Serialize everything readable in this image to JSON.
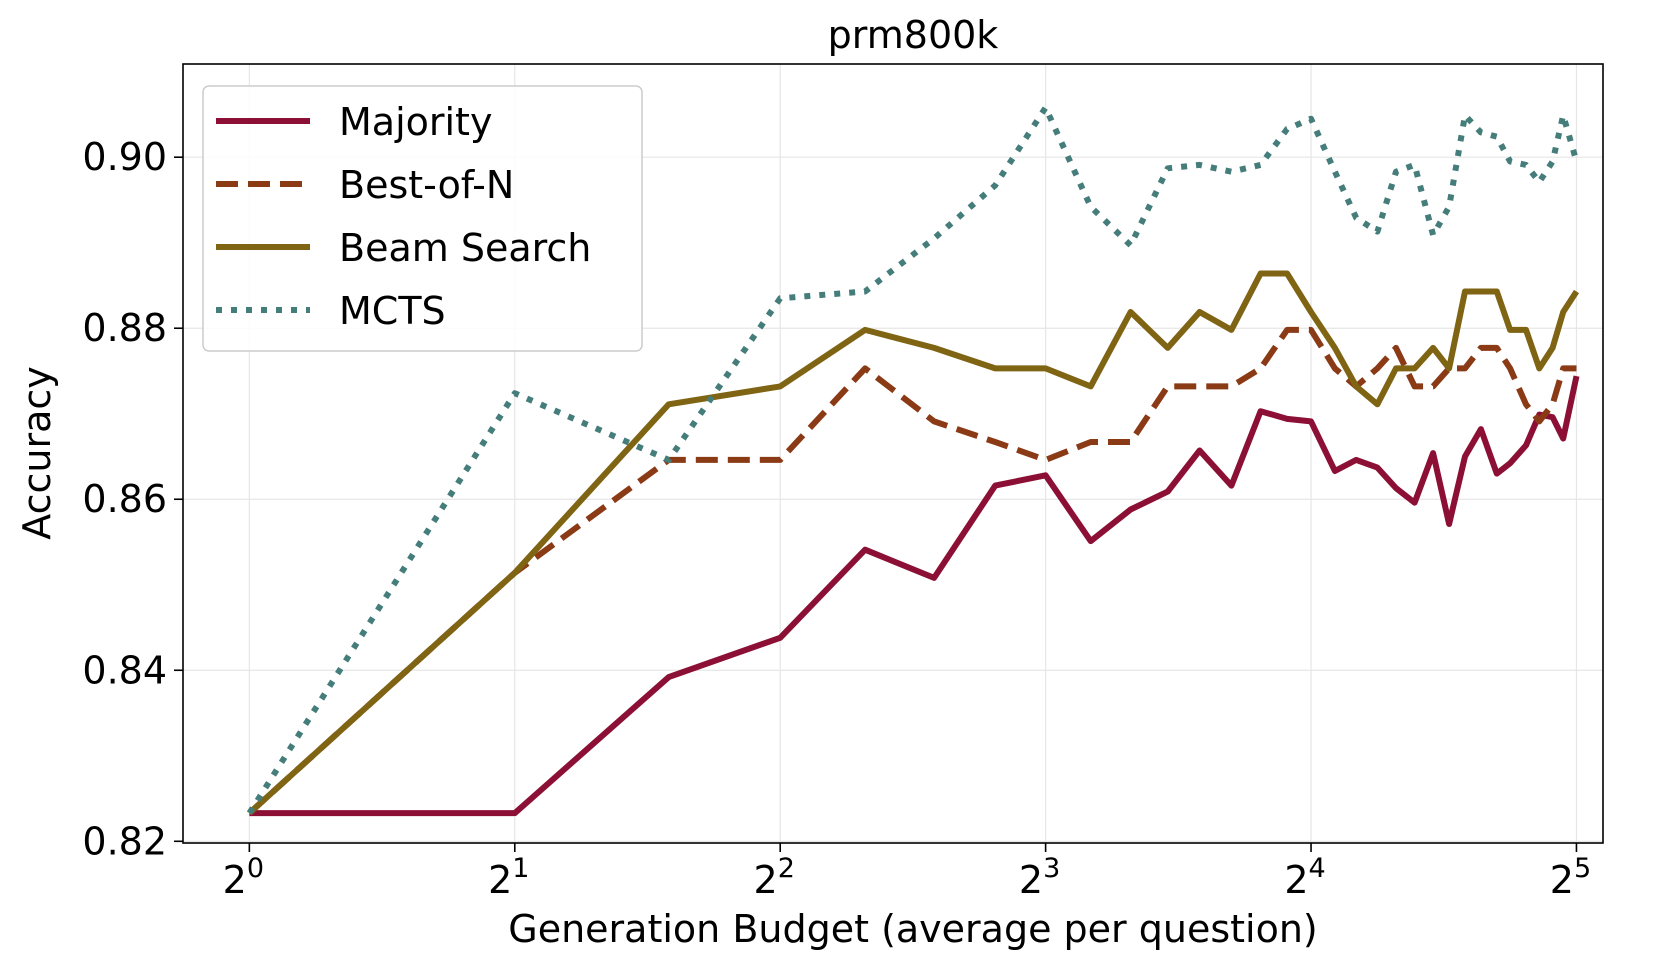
{
  "chart_data": {
    "type": "line",
    "title": "prm800k",
    "xlabel": "Generation Budget (average per question)",
    "ylabel": "Accuracy",
    "x_scale": "log2",
    "xlim_log2": [
      -0.25,
      5.1
    ],
    "ylim": [
      0.8198,
      0.9109
    ],
    "x_ticks": [
      {
        "base": "2",
        "exp": "0",
        "log2": 0
      },
      {
        "base": "2",
        "exp": "1",
        "log2": 1
      },
      {
        "base": "2",
        "exp": "2",
        "log2": 2
      },
      {
        "base": "2",
        "exp": "3",
        "log2": 3
      },
      {
        "base": "2",
        "exp": "4",
        "log2": 4
      },
      {
        "base": "2",
        "exp": "5",
        "log2": 5
      }
    ],
    "y_ticks": [
      {
        "label": "0.82",
        "value": 0.82
      },
      {
        "label": "0.84",
        "value": 0.84
      },
      {
        "label": "0.86",
        "value": 0.86
      },
      {
        "label": "0.88",
        "value": 0.88
      },
      {
        "label": "0.90",
        "value": 0.9
      }
    ],
    "grid": true,
    "legend_position": "top-left",
    "series": [
      {
        "name": "Majority",
        "color": "#8c1035",
        "style": "solid",
        "points": [
          [
            0,
            0.8233
          ],
          [
            1,
            0.8233
          ],
          [
            1.58,
            0.8392
          ],
          [
            2,
            0.8438
          ],
          [
            2.32,
            0.8541
          ],
          [
            2.58,
            0.8508
          ],
          [
            2.81,
            0.8616
          ],
          [
            3,
            0.8628
          ],
          [
            3.17,
            0.8551
          ],
          [
            3.32,
            0.8588
          ],
          [
            3.46,
            0.8609
          ],
          [
            3.58,
            0.8657
          ],
          [
            3.7,
            0.8616
          ],
          [
            3.81,
            0.8703
          ],
          [
            3.91,
            0.8694
          ],
          [
            4,
            0.8691
          ],
          [
            4.09,
            0.8633
          ],
          [
            4.17,
            0.8646
          ],
          [
            4.25,
            0.8637
          ],
          [
            4.32,
            0.8613
          ],
          [
            4.39,
            0.8596
          ],
          [
            4.46,
            0.8654
          ],
          [
            4.52,
            0.8571
          ],
          [
            4.58,
            0.865
          ],
          [
            4.64,
            0.8682
          ],
          [
            4.7,
            0.863
          ],
          [
            4.75,
            0.8642
          ],
          [
            4.81,
            0.8663
          ],
          [
            4.86,
            0.8699
          ],
          [
            4.91,
            0.8696
          ],
          [
            4.95,
            0.8671
          ],
          [
            5,
            0.8744
          ]
        ]
      },
      {
        "name": "Best-of-N",
        "color": "#8b3a16",
        "style": "dashed",
        "points": [
          [
            0,
            0.8233
          ],
          [
            1,
            0.8514
          ],
          [
            1.58,
            0.8646
          ],
          [
            2,
            0.8646
          ],
          [
            2.32,
            0.8753
          ],
          [
            2.58,
            0.8691
          ],
          [
            2.81,
            0.8667
          ],
          [
            3,
            0.8646
          ],
          [
            3.17,
            0.8667
          ],
          [
            3.32,
            0.8667
          ],
          [
            3.46,
            0.8732
          ],
          [
            3.58,
            0.8732
          ],
          [
            3.7,
            0.8732
          ],
          [
            3.81,
            0.8753
          ],
          [
            3.91,
            0.8798
          ],
          [
            4,
            0.8798
          ],
          [
            4.09,
            0.8753
          ],
          [
            4.17,
            0.8732
          ],
          [
            4.25,
            0.8753
          ],
          [
            4.32,
            0.8777
          ],
          [
            4.39,
            0.8732
          ],
          [
            4.46,
            0.8732
          ],
          [
            4.52,
            0.8753
          ],
          [
            4.58,
            0.8753
          ],
          [
            4.64,
            0.8777
          ],
          [
            4.7,
            0.8777
          ],
          [
            4.75,
            0.8753
          ],
          [
            4.81,
            0.8711
          ],
          [
            4.86,
            0.8691
          ],
          [
            4.91,
            0.8711
          ],
          [
            4.95,
            0.8753
          ],
          [
            5,
            0.8753
          ]
        ]
      },
      {
        "name": "Beam Search",
        "color": "#7f6414",
        "style": "solid",
        "points": [
          [
            0,
            0.8233
          ],
          [
            1,
            0.8514
          ],
          [
            1.58,
            0.8711
          ],
          [
            2,
            0.8732
          ],
          [
            2.32,
            0.8798
          ],
          [
            2.58,
            0.8777
          ],
          [
            2.81,
            0.8753
          ],
          [
            3,
            0.8753
          ],
          [
            3.17,
            0.8732
          ],
          [
            3.32,
            0.8819
          ],
          [
            3.46,
            0.8777
          ],
          [
            3.58,
            0.8819
          ],
          [
            3.7,
            0.8798
          ],
          [
            3.81,
            0.8864
          ],
          [
            3.91,
            0.8864
          ],
          [
            4,
            0.8819
          ],
          [
            4.09,
            0.8777
          ],
          [
            4.17,
            0.8732
          ],
          [
            4.25,
            0.8711
          ],
          [
            4.32,
            0.8753
          ],
          [
            4.39,
            0.8753
          ],
          [
            4.46,
            0.8777
          ],
          [
            4.52,
            0.8753
          ],
          [
            4.58,
            0.8843
          ],
          [
            4.64,
            0.8843
          ],
          [
            4.7,
            0.8843
          ],
          [
            4.75,
            0.8798
          ],
          [
            4.81,
            0.8798
          ],
          [
            4.86,
            0.8753
          ],
          [
            4.91,
            0.8777
          ],
          [
            4.95,
            0.8819
          ],
          [
            5,
            0.8843
          ]
        ]
      },
      {
        "name": "MCTS",
        "color": "#457d7a",
        "style": "dotted",
        "points": [
          [
            0,
            0.8233
          ],
          [
            1,
            0.8724
          ],
          [
            1.58,
            0.8646
          ],
          [
            2,
            0.8835
          ],
          [
            2.32,
            0.8843
          ],
          [
            2.58,
            0.8905
          ],
          [
            2.81,
            0.8967
          ],
          [
            3,
            0.9058
          ],
          [
            3.17,
            0.8942
          ],
          [
            3.32,
            0.8897
          ],
          [
            3.46,
            0.8987
          ],
          [
            3.58,
            0.8991
          ],
          [
            3.7,
            0.8983
          ],
          [
            3.81,
            0.8991
          ],
          [
            3.91,
            0.9033
          ],
          [
            4,
            0.9045
          ],
          [
            4.09,
            0.8983
          ],
          [
            4.17,
            0.8929
          ],
          [
            4.25,
            0.8913
          ],
          [
            4.32,
            0.8983
          ],
          [
            4.39,
            0.8991
          ],
          [
            4.46,
            0.8909
          ],
          [
            4.52,
            0.8942
          ],
          [
            4.58,
            0.9049
          ],
          [
            4.64,
            0.9029
          ],
          [
            4.7,
            0.9024
          ],
          [
            4.75,
            0.8995
          ],
          [
            4.81,
            0.8991
          ],
          [
            4.86,
            0.8971
          ],
          [
            4.91,
            0.8995
          ],
          [
            4.95,
            0.9049
          ],
          [
            5,
            0.8995
          ]
        ]
      }
    ]
  }
}
